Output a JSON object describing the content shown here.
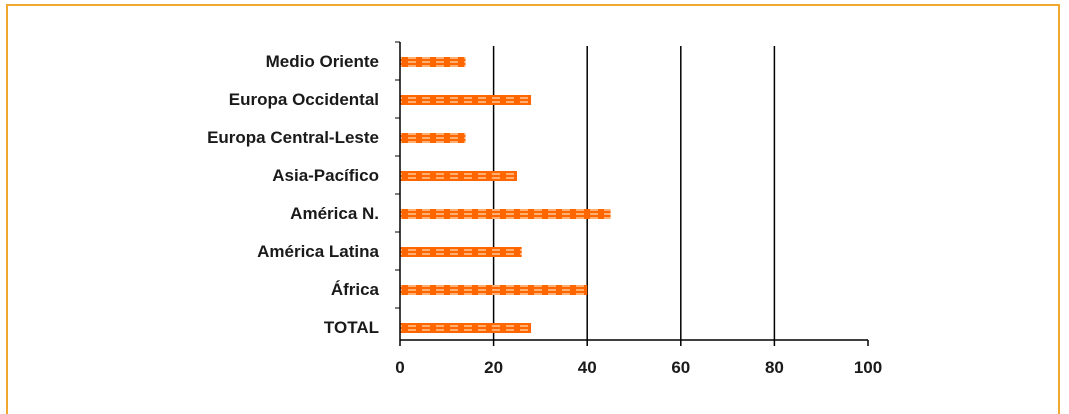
{
  "chart_data": {
    "type": "bar",
    "orientation": "horizontal",
    "categories": [
      "Medio Oriente",
      "Europa Occidental",
      "Europa Central-Leste",
      "Asia-Pacífico",
      "América N.",
      "América Latina",
      "África",
      "TOTAL"
    ],
    "values": [
      14,
      28,
      14,
      25,
      45,
      26,
      40,
      28
    ],
    "xlim": [
      0,
      100
    ],
    "xticks": [
      "0",
      "20",
      "40",
      "60",
      "80",
      "100"
    ],
    "grid": true,
    "colors": {
      "bar": "#ff6600",
      "bar_pattern": "#ffb070",
      "frame": "#f0a830",
      "axis": "#000000"
    }
  }
}
